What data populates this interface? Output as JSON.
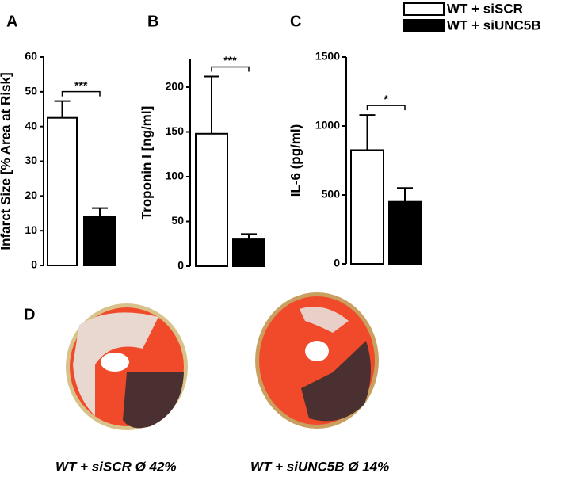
{
  "chart_data": [
    {
      "type": "bar",
      "panel": "A",
      "ylabel": "Infarct Size  [% Area at Risk]",
      "categories": [
        null,
        null
      ],
      "series": [
        {
          "name": "WT + siSCR",
          "color": "#ffffff",
          "values": [
            42.5,
            null
          ],
          "errors": [
            4.8,
            null
          ]
        },
        {
          "name": "WT + siUNC5B",
          "color": "#000000",
          "values": [
            null,
            14
          ],
          "errors": [
            null,
            2.5
          ]
        }
      ],
      "ylim": [
        0,
        60
      ],
      "yticks": [
        0,
        10,
        20,
        30,
        40,
        50,
        60
      ],
      "annotation": "***"
    },
    {
      "type": "bar",
      "panel": "B",
      "ylabel": "Troponin I [ng/ml]",
      "categories": [
        null,
        null
      ],
      "series": [
        {
          "color": "#ffffff",
          "values": [
            148,
            null
          ],
          "errors": [
            64,
            null
          ]
        },
        {
          "color": "#000000",
          "values": [
            null,
            30
          ],
          "errors": [
            null,
            6
          ]
        }
      ],
      "ylim": [
        0,
        231
      ],
      "yticks": [
        0,
        50,
        100,
        150,
        200
      ],
      "annotation": "***"
    },
    {
      "type": "bar",
      "panel": "C",
      "ylabel": "IL-6 (pg/ml)",
      "categories": [
        null,
        null
      ],
      "series": [
        {
          "color": "#ffffff",
          "values": [
            825,
            null
          ],
          "errors": [
            255,
            null
          ]
        },
        {
          "color": "#000000",
          "values": [
            null,
            450
          ],
          "errors": [
            null,
            100
          ]
        }
      ],
      "ylim": [
        0,
        1500
      ],
      "yticks": [
        0,
        500,
        1000,
        1500
      ],
      "annotation": "*"
    }
  ],
  "panel_d": {
    "label": "D",
    "captions": [
      "WT + siSCR  Ø 42%",
      "WT + siUNC5B Ø 14%"
    ]
  }
}
